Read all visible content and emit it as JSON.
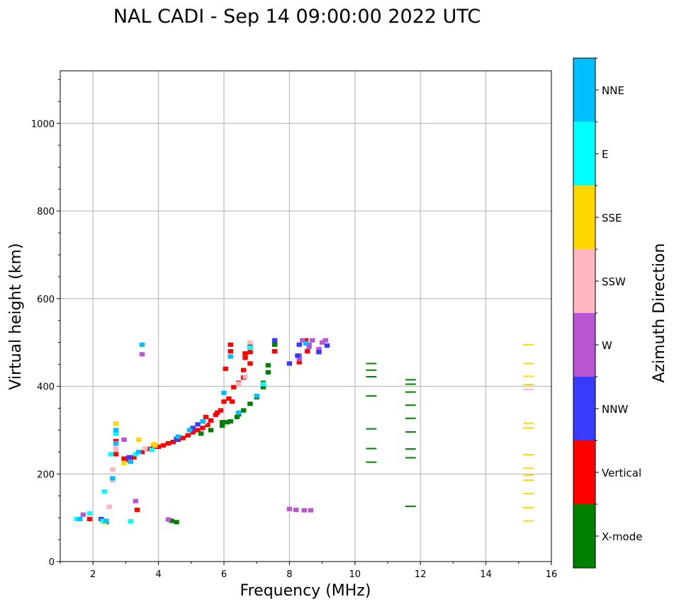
{
  "chart_data": {
    "type": "scatter",
    "title": "NAL CADI - Sep 14 09:00:00 2022 UTC",
    "xlabel": "Frequency (MHz)",
    "ylabel": "Virtual height (km)",
    "xlim": [
      1,
      16
    ],
    "ylim": [
      0,
      1120
    ],
    "xticks": [
      2,
      4,
      6,
      8,
      10,
      12,
      14,
      16
    ],
    "yticks": [
      0,
      200,
      400,
      600,
      800,
      1000
    ],
    "grid": true,
    "colorbar": {
      "label": "Azimuth Direction",
      "categories": [
        "X-mode",
        "Vertical",
        "NNW",
        "W",
        "SSW",
        "SSE",
        "E",
        "NNE"
      ],
      "colors": [
        "#008000",
        "#ff0000",
        "#3a3aff",
        "#ba55d3",
        "#ffb6c1",
        "#ffd700",
        "#00ffff",
        "#00bfff"
      ]
    },
    "points_format": [
      "frequency_MHz",
      "height_km",
      "category_index"
    ],
    "points": [
      [
        2.95,
        235,
        1
      ],
      [
        3.1,
        232,
        1
      ],
      [
        3.25,
        238,
        1
      ],
      [
        3.5,
        250,
        1
      ],
      [
        3.7,
        257,
        1
      ],
      [
        3.85,
        262,
        1
      ],
      [
        4.0,
        262,
        1
      ],
      [
        4.15,
        265,
        1
      ],
      [
        4.3,
        270,
        1
      ],
      [
        4.45,
        273,
        1
      ],
      [
        4.6,
        278,
        1
      ],
      [
        4.75,
        282,
        1
      ],
      [
        4.9,
        288,
        1
      ],
      [
        5.05,
        295,
        1
      ],
      [
        5.2,
        300,
        1
      ],
      [
        5.35,
        305,
        1
      ],
      [
        5.5,
        312,
        1
      ],
      [
        5.6,
        322,
        1
      ],
      [
        5.75,
        335,
        1
      ],
      [
        5.9,
        345,
        1
      ],
      [
        6.0,
        365,
        1
      ],
      [
        6.15,
        372,
        1
      ],
      [
        6.3,
        398,
        1
      ],
      [
        6.45,
        408,
        1
      ],
      [
        6.6,
        420,
        1
      ],
      [
        6.65,
        465,
        1
      ],
      [
        6.65,
        475,
        1
      ],
      [
        6.8,
        478,
        1
      ],
      [
        6.8,
        490,
        1
      ],
      [
        6.2,
        480,
        1
      ],
      [
        6.2,
        495,
        1
      ],
      [
        6.05,
        440,
        1
      ],
      [
        7.55,
        480,
        1
      ],
      [
        7.55,
        500,
        1
      ],
      [
        8.3,
        455,
        1
      ],
      [
        8.55,
        480,
        1
      ],
      [
        8.5,
        505,
        1
      ],
      [
        6.8,
        452,
        1
      ],
      [
        6.6,
        437,
        1
      ],
      [
        6.25,
        365,
        1
      ],
      [
        5.8,
        340,
        1
      ],
      [
        5.45,
        330,
        1
      ],
      [
        2.7,
        275,
        1
      ],
      [
        2.7,
        245,
        1
      ],
      [
        1.9,
        97,
        1
      ],
      [
        3.35,
        118,
        1
      ],
      [
        5.3,
        292,
        0
      ],
      [
        5.6,
        300,
        0
      ],
      [
        5.95,
        310,
        0
      ],
      [
        6.1,
        318,
        0
      ],
      [
        6.2,
        320,
        0
      ],
      [
        6.4,
        330,
        0
      ],
      [
        6.45,
        336,
        0
      ],
      [
        6.6,
        345,
        0
      ],
      [
        6.8,
        360,
        0
      ],
      [
        7.0,
        375,
        0
      ],
      [
        7.2,
        398,
        0
      ],
      [
        7.2,
        408,
        0
      ],
      [
        7.35,
        432,
        0
      ],
      [
        7.35,
        448,
        0
      ],
      [
        7.55,
        495,
        0
      ],
      [
        6.8,
        495,
        0
      ],
      [
        4.4,
        93,
        0
      ],
      [
        4.55,
        90,
        0
      ],
      [
        2.4,
        90,
        0
      ],
      [
        5.95,
        318,
        0
      ],
      [
        10.5,
        452,
        0
      ],
      [
        10.5,
        437,
        0
      ],
      [
        10.5,
        422,
        0
      ],
      [
        10.5,
        378,
        0
      ],
      [
        10.5,
        303,
        0
      ],
      [
        10.5,
        258,
        0
      ],
      [
        10.5,
        227,
        0
      ],
      [
        11.7,
        415,
        0
      ],
      [
        11.7,
        405,
        0
      ],
      [
        11.7,
        387,
        0
      ],
      [
        11.7,
        357,
        0
      ],
      [
        11.7,
        327,
        0
      ],
      [
        11.7,
        296,
        0
      ],
      [
        11.7,
        257,
        0
      ],
      [
        11.7,
        237,
        0
      ],
      [
        11.7,
        126,
        0
      ],
      [
        15.3,
        495,
        5
      ],
      [
        15.3,
        452,
        5
      ],
      [
        15.3,
        423,
        5
      ],
      [
        15.3,
        404,
        5
      ],
      [
        15.3,
        316,
        5
      ],
      [
        15.3,
        305,
        5
      ],
      [
        15.3,
        244,
        5
      ],
      [
        15.3,
        213,
        5
      ],
      [
        15.3,
        197,
        5
      ],
      [
        15.3,
        186,
        5
      ],
      [
        15.3,
        155,
        5
      ],
      [
        15.3,
        123,
        5
      ],
      [
        15.3,
        93,
        5
      ],
      [
        15.3,
        393,
        4
      ],
      [
        8.3,
        462,
        3
      ],
      [
        8.3,
        470,
        3
      ],
      [
        8.6,
        495,
        3
      ],
      [
        8.9,
        480,
        3
      ],
      [
        9.0,
        500,
        3
      ],
      [
        8.4,
        505,
        3
      ],
      [
        8.7,
        505,
        3
      ],
      [
        9.1,
        505,
        3
      ],
      [
        8.9,
        485,
        3
      ],
      [
        8.6,
        490,
        3
      ],
      [
        8.0,
        120,
        3
      ],
      [
        8.2,
        118,
        3
      ],
      [
        8.45,
        117,
        3
      ],
      [
        8.65,
        117,
        3
      ],
      [
        2.95,
        278,
        3
      ],
      [
        3.3,
        138,
        3
      ],
      [
        4.3,
        96,
        3
      ],
      [
        1.7,
        107,
        3
      ],
      [
        3.5,
        473,
        3
      ],
      [
        8.0,
        452,
        2
      ],
      [
        8.25,
        470,
        2
      ],
      [
        8.9,
        478,
        2
      ],
      [
        9.15,
        493,
        2
      ],
      [
        8.3,
        495,
        2
      ],
      [
        3.1,
        238,
        2
      ],
      [
        2.25,
        97,
        2
      ],
      [
        5.2,
        313,
        2
      ],
      [
        5.05,
        305,
        2
      ],
      [
        7.55,
        505,
        2
      ],
      [
        4.55,
        280,
        2
      ],
      [
        2.7,
        262,
        4
      ],
      [
        2.7,
        255,
        4
      ],
      [
        2.6,
        210,
        4
      ],
      [
        2.6,
        185,
        4
      ],
      [
        3.6,
        258,
        4
      ],
      [
        2.5,
        125,
        4
      ],
      [
        5.4,
        318,
        4
      ],
      [
        6.45,
        406,
        4
      ],
      [
        6.65,
        422,
        4
      ],
      [
        6.8,
        500,
        4
      ],
      [
        2.7,
        315,
        5
      ],
      [
        3.4,
        278,
        5
      ],
      [
        2.95,
        225,
        5
      ],
      [
        2.35,
        90,
        5
      ],
      [
        3.85,
        268,
        5
      ],
      [
        3.9,
        265,
        5
      ],
      [
        2.7,
        292,
        6
      ],
      [
        2.55,
        245,
        6
      ],
      [
        3.3,
        245,
        6
      ],
      [
        3.8,
        255,
        6
      ],
      [
        1.9,
        110,
        6
      ],
      [
        2.3,
        93,
        6
      ],
      [
        2.35,
        160,
        6
      ],
      [
        3.15,
        92,
        6
      ],
      [
        1.5,
        97,
        6
      ],
      [
        6.8,
        488,
        6
      ],
      [
        7.2,
        405,
        6
      ],
      [
        2.7,
        300,
        7
      ],
      [
        2.7,
        270,
        7
      ],
      [
        2.6,
        190,
        7
      ],
      [
        3.15,
        228,
        7
      ],
      [
        3.4,
        250,
        7
      ],
      [
        3.5,
        495,
        7
      ],
      [
        1.6,
        97,
        7
      ],
      [
        2.4,
        93,
        7
      ],
      [
        4.6,
        285,
        7
      ],
      [
        4.95,
        300,
        7
      ],
      [
        5.35,
        320,
        7
      ],
      [
        6.0,
        385,
        7
      ],
      [
        6.2,
        468,
        7
      ],
      [
        7.0,
        378,
        7
      ],
      [
        6.45,
        340,
        7
      ],
      [
        8.5,
        498,
        7
      ]
    ]
  }
}
